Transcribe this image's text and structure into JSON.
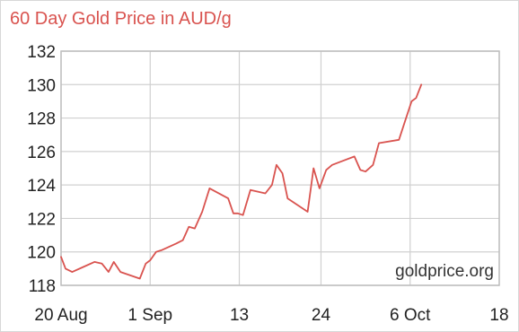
{
  "chart_data": {
    "type": "line",
    "title": "60 Day Gold Price in AUD/g",
    "xlabel": "",
    "ylabel": "",
    "ylim": [
      118,
      132
    ],
    "y_ticks": [
      118,
      120,
      122,
      124,
      126,
      128,
      130,
      132
    ],
    "x_ticks": [
      {
        "label": "20 Aug",
        "day": 0
      },
      {
        "label": "1 Sep",
        "day": 12
      },
      {
        "label": "13",
        "day": 24
      },
      {
        "label": "24",
        "day": 35
      },
      {
        "label": "6 Oct",
        "day": 47
      },
      {
        "label": "18",
        "day": 59
      }
    ],
    "grid": true,
    "line_color": "#d9534f",
    "watermark": "goldprice.org",
    "series": [
      {
        "name": "",
        "points": [
          [
            0.0,
            119.7
          ],
          [
            0.6,
            119.0
          ],
          [
            1.5,
            118.8
          ],
          [
            3.0,
            119.1
          ],
          [
            4.5,
            119.4
          ],
          [
            5.5,
            119.3
          ],
          [
            6.4,
            118.8
          ],
          [
            7.1,
            119.4
          ],
          [
            8.0,
            118.8
          ],
          [
            10.6,
            118.4
          ],
          [
            11.4,
            119.3
          ],
          [
            12.0,
            119.5
          ],
          [
            12.8,
            120.0
          ],
          [
            13.5,
            120.1
          ],
          [
            15.5,
            120.5
          ],
          [
            16.4,
            120.7
          ],
          [
            17.2,
            121.5
          ],
          [
            18.0,
            121.4
          ],
          [
            19.0,
            122.4
          ],
          [
            20.0,
            123.8
          ],
          [
            22.5,
            123.2
          ],
          [
            23.2,
            122.3
          ],
          [
            23.8,
            122.3
          ],
          [
            24.5,
            122.2
          ],
          [
            25.5,
            123.7
          ],
          [
            27.5,
            123.5
          ],
          [
            28.4,
            124.0
          ],
          [
            29.0,
            125.2
          ],
          [
            29.8,
            124.7
          ],
          [
            30.5,
            123.2
          ],
          [
            33.2,
            122.4
          ],
          [
            34.0,
            125.0
          ],
          [
            34.8,
            123.8
          ],
          [
            35.7,
            124.9
          ],
          [
            36.5,
            125.2
          ],
          [
            39.5,
            125.7
          ],
          [
            40.3,
            124.9
          ],
          [
            41.0,
            124.8
          ],
          [
            42.0,
            125.2
          ],
          [
            42.8,
            126.5
          ],
          [
            45.5,
            126.7
          ],
          [
            46.3,
            127.8
          ],
          [
            47.2,
            129.0
          ],
          [
            47.8,
            129.2
          ],
          [
            48.5,
            130.0
          ]
        ]
      }
    ]
  }
}
